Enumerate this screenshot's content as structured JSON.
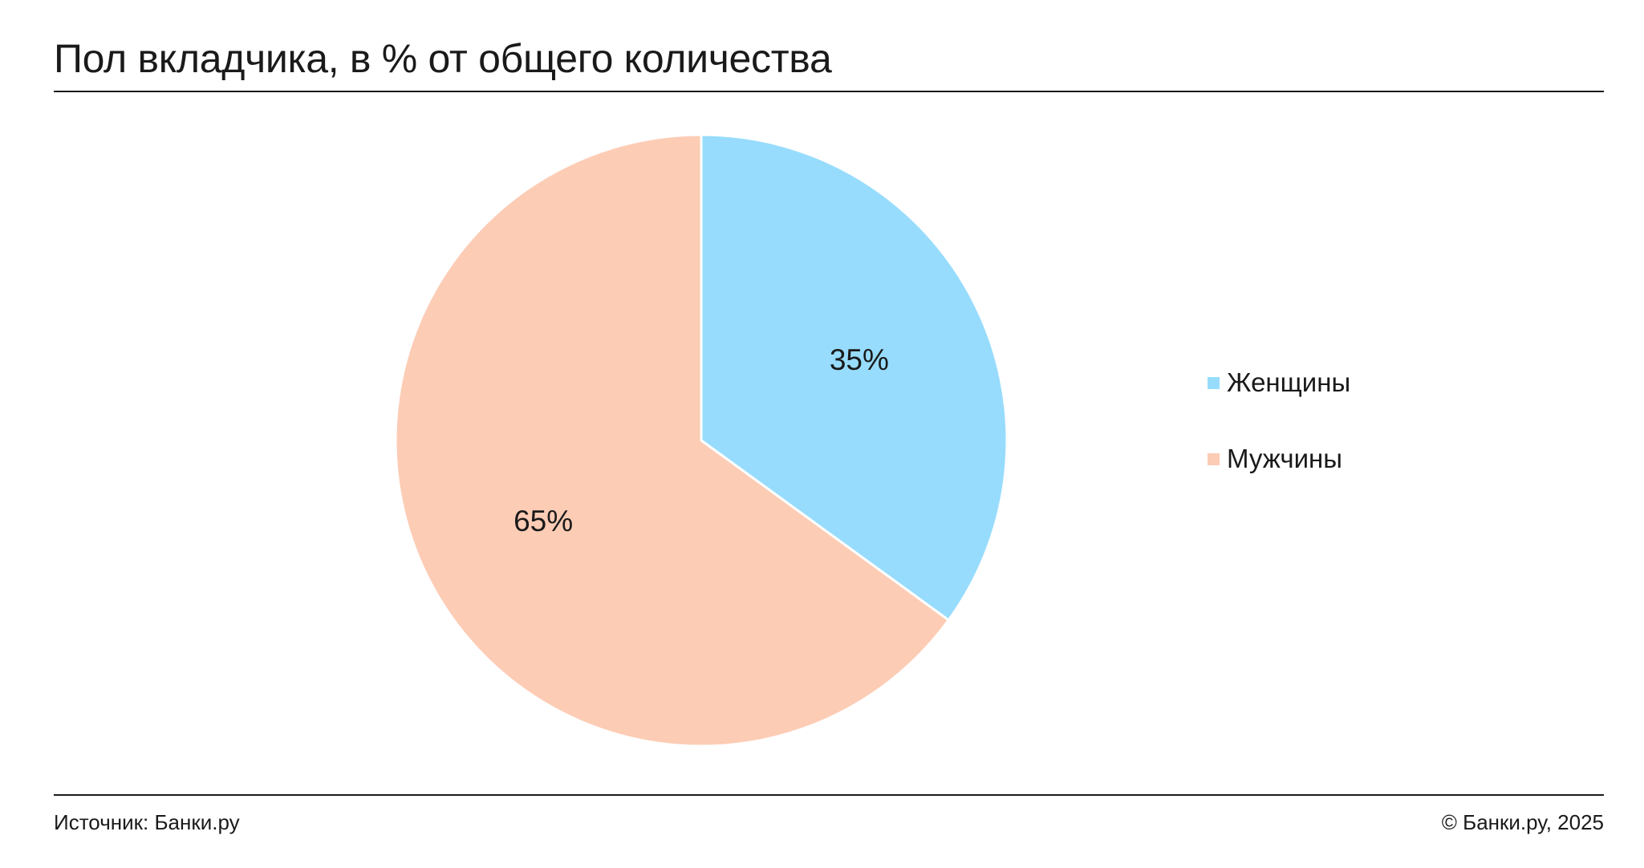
{
  "header": {
    "title": "Пол вкладчика, в % от общего количества"
  },
  "footer": {
    "source": "Источник: Банки.ру",
    "copyright": "© Банки.ру, 2025"
  },
  "chart_data": {
    "type": "pie",
    "title": "Пол вкладчика, в % от общего количества",
    "unit": "%",
    "slices": [
      {
        "label": "Женщины",
        "value": 35,
        "display": "35%",
        "color": "#97dcfd"
      },
      {
        "label": "Мужчины",
        "value": 65,
        "display": "65%",
        "color": "#fdccb5"
      }
    ],
    "start": "12 o'clock",
    "direction": "clockwise",
    "legend": {
      "position": "right",
      "items": [
        "Женщины",
        "Мужчины"
      ]
    },
    "label_color": "#1a1a1a",
    "separator_color": "#ffffff"
  }
}
